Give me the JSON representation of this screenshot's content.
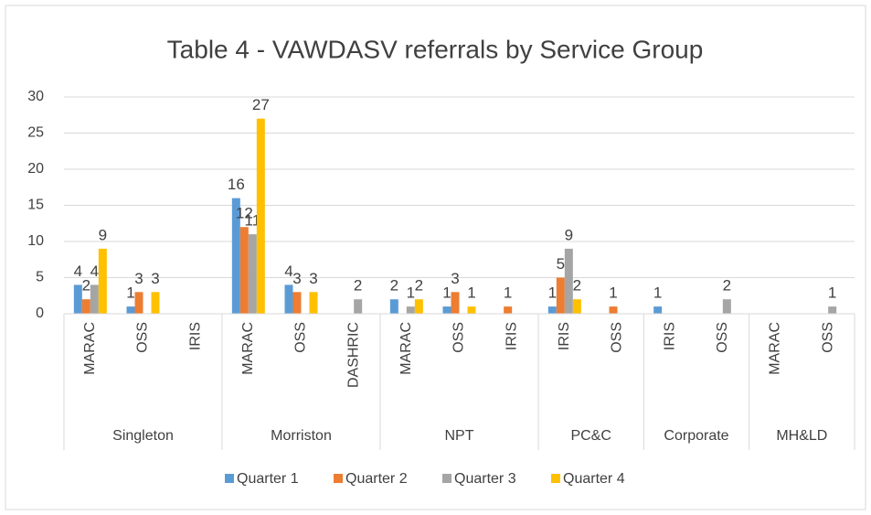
{
  "chart_data": {
    "type": "bar",
    "title": "Table 4 -  VAWDASV referrals by Service Group",
    "groups": [
      {
        "name": "Singleton",
        "categories": [
          "MARAC",
          "OSS",
          "IRIS"
        ]
      },
      {
        "name": "Morriston",
        "categories": [
          "MARAC",
          "OSS",
          "DASHRIC"
        ]
      },
      {
        "name": "NPT",
        "categories": [
          "MARAC",
          "OSS",
          "IRIS"
        ]
      },
      {
        "name": "PC&C",
        "categories": [
          "IRIS",
          "OSS"
        ]
      },
      {
        "name": "Corporate",
        "categories": [
          "IRIS",
          "OSS"
        ]
      },
      {
        "name": "MH&LD",
        "categories": [
          "MARAC",
          "OSS"
        ]
      }
    ],
    "series": [
      {
        "name": "Quarter 1",
        "color": "#5b9bd5",
        "values": [
          4,
          1,
          null,
          16,
          4,
          null,
          2,
          1,
          null,
          1,
          null,
          1,
          null,
          null,
          null
        ]
      },
      {
        "name": "Quarter 2",
        "color": "#ed7d31",
        "values": [
          2,
          3,
          null,
          12,
          3,
          null,
          null,
          3,
          1,
          5,
          1,
          null,
          null,
          null,
          null
        ]
      },
      {
        "name": "Quarter 3",
        "color": "#a5a5a5",
        "values": [
          4,
          null,
          null,
          11,
          null,
          2,
          1,
          null,
          null,
          9,
          null,
          null,
          2,
          null,
          1
        ]
      },
      {
        "name": "Quarter 4",
        "color": "#ffc000",
        "values": [
          9,
          3,
          null,
          27,
          3,
          null,
          2,
          1,
          null,
          2,
          null,
          null,
          null,
          null,
          null
        ]
      }
    ],
    "ylim": [
      0,
      30
    ],
    "yticks": [
      0,
      5,
      10,
      15,
      20,
      25,
      30
    ],
    "grid": true,
    "legend": "bottom"
  }
}
